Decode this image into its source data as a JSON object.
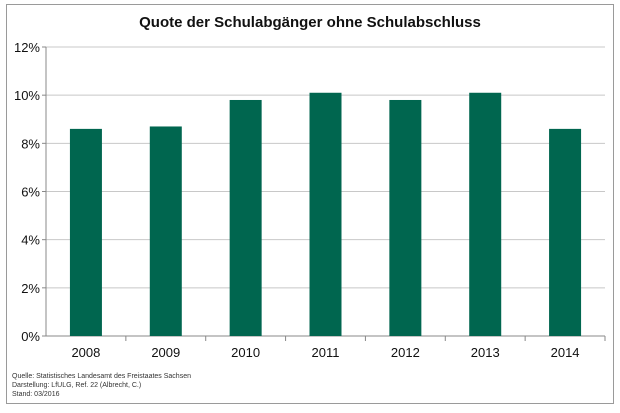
{
  "chart_data": {
    "type": "bar",
    "title": "Quote der Schulabgänger ohne Schulabschluss",
    "categories": [
      "2008",
      "2009",
      "2010",
      "2011",
      "2012",
      "2013",
      "2014"
    ],
    "values": [
      8.6,
      8.7,
      9.8,
      10.1,
      9.8,
      10.1,
      8.6
    ],
    "unit": "%",
    "ylim": [
      0,
      12
    ],
    "yticks": [
      "0%",
      "2%",
      "4%",
      "6%",
      "8%",
      "10%",
      "12%"
    ],
    "grid": true,
    "bar_color": "#00664f"
  },
  "source": {
    "line1": "Quelle: Statistisches Landesamt des Freistaates Sachsen",
    "line2": "Darstellung: LfULG, Ref. 22 (Albrecht, C.)",
    "line3": "Stand: 03/2016"
  }
}
